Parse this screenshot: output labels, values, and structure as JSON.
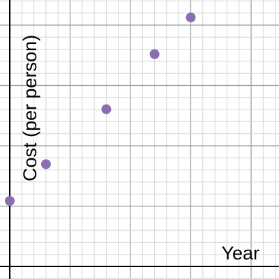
{
  "chart_data": {
    "type": "scatter",
    "title": "",
    "xlabel": "Year",
    "ylabel": "Cost (per person)",
    "grid": true,
    "points": [
      {
        "x": 0,
        "y": 0
      },
      {
        "x": 1.5,
        "y": 1
      },
      {
        "x": 4,
        "y": 2.5
      },
      {
        "x": 6,
        "y": 4
      },
      {
        "x": 7.5,
        "y": 5
      }
    ],
    "colors": {
      "point": "#8a6fb0",
      "grid_minor": "#d6d6d6",
      "grid_major": "#9a9a9a",
      "axis": "#000000"
    }
  }
}
